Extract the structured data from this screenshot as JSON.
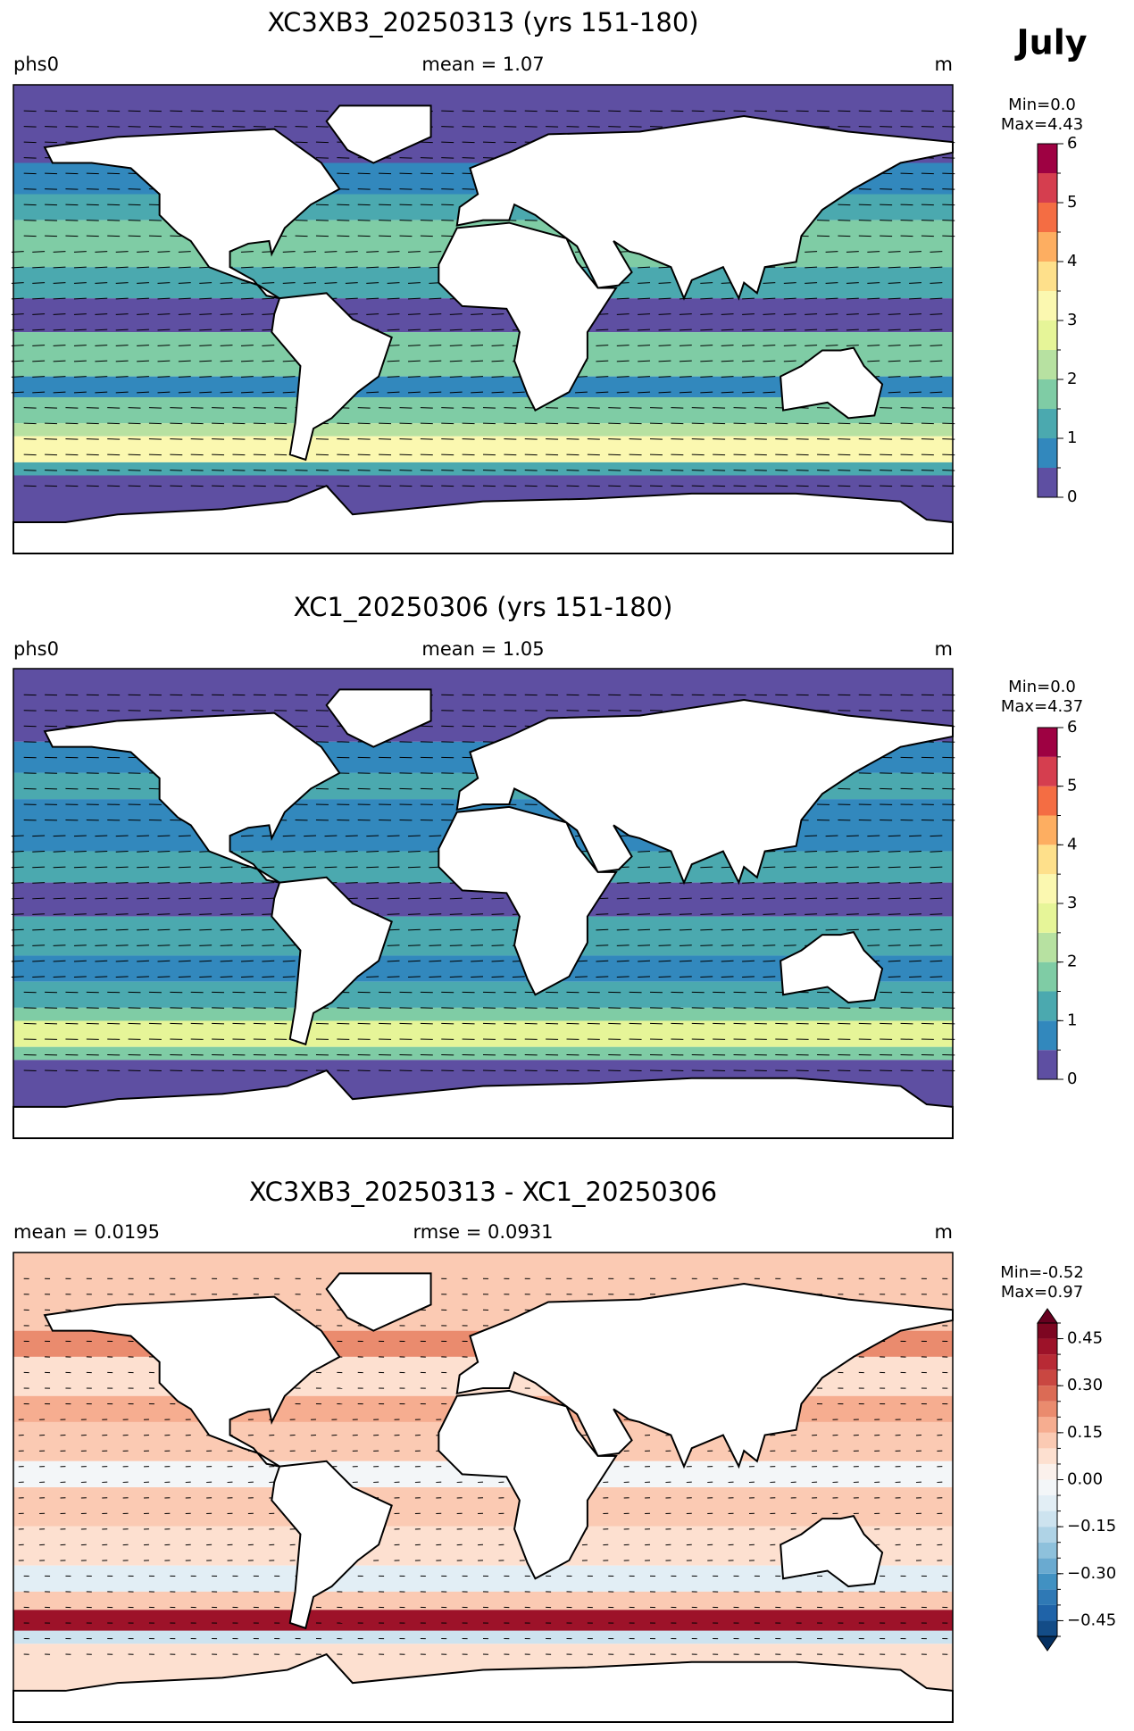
{
  "figure_title": "July",
  "chart_data": [
    {
      "type": "map",
      "title": "XC3XB3_20250313 (yrs 151-180)",
      "left_label": "phs0",
      "center_label": "mean = 1.07",
      "right_label": "m",
      "colorbar": {
        "stats": [
          "Min=0.0",
          "Max=4.43"
        ],
        "lim": [
          0,
          6
        ],
        "ticks": [
          0,
          1,
          2,
          3,
          4,
          5,
          6
        ],
        "levels": [
          0,
          0.5,
          1,
          1.5,
          2,
          2.5,
          3,
          3.5,
          4,
          4.5,
          5,
          5.5,
          6
        ],
        "colors": [
          "#5e4fa2",
          "#3288bd",
          "#4ba9af",
          "#7fcca5",
          "#b7e1a1",
          "#e6f598",
          "#fbf8b0",
          "#fee08b",
          "#fdae61",
          "#f46d43",
          "#d53e4f",
          "#9e0142"
        ]
      }
    },
    {
      "type": "map",
      "title": "XC1_20250306 (yrs 151-180)",
      "left_label": "phs0",
      "center_label": "mean = 1.05",
      "right_label": "m",
      "colorbar": {
        "stats": [
          "Min=0.0",
          "Max=4.37"
        ],
        "lim": [
          0,
          6
        ],
        "ticks": [
          0,
          1,
          2,
          3,
          4,
          5,
          6
        ],
        "levels": [
          0,
          0.5,
          1,
          1.5,
          2,
          2.5,
          3,
          3.5,
          4,
          4.5,
          5,
          5.5,
          6
        ],
        "colors": [
          "#5e4fa2",
          "#3288bd",
          "#4ba9af",
          "#7fcca5",
          "#b7e1a1",
          "#e6f598",
          "#fbf8b0",
          "#fee08b",
          "#fdae61",
          "#f46d43",
          "#d53e4f",
          "#9e0142"
        ]
      }
    },
    {
      "type": "map",
      "title": "XC3XB3_20250313 - XC1_20250306",
      "left_label": "mean = 0.0195",
      "center_label": "rmse = 0.0931",
      "right_label": "m",
      "colorbar": {
        "stats": [
          "Min=-0.52",
          "Max=0.97"
        ],
        "lim": [
          -0.5,
          0.5
        ],
        "extend": "both",
        "ticks": [
          {
            "value": -0.45,
            "label": "−0.45"
          },
          {
            "value": -0.3,
            "label": "−0.30"
          },
          {
            "value": -0.15,
            "label": "−0.15"
          },
          {
            "value": 0,
            "label": "0.00"
          },
          0.15,
          {
            "value": 0.3,
            "label": "0.30"
          },
          0.45
        ],
        "levels": [
          -0.5,
          -0.45,
          -0.4,
          -0.35,
          -0.3,
          -0.25,
          -0.2,
          -0.15,
          -0.1,
          -0.05,
          0,
          0.05,
          0.1,
          0.15,
          0.2,
          0.25,
          0.3,
          0.35,
          0.4,
          0.45,
          0.5
        ],
        "colors": [
          "#134c87",
          "#1f63a8",
          "#2f79b5",
          "#4191c2",
          "#6aaad0",
          "#8ec1dc",
          "#afd3e6",
          "#cde3ef",
          "#e2eef5",
          "#f3f6f8",
          "#fbf1ec",
          "#fde0d0",
          "#fbcab3",
          "#f6ad90",
          "#ea8b6e",
          "#db6b55",
          "#c94741",
          "#b82a35",
          "#9d1229",
          "#7d0621"
        ],
        "under_color": "#053061",
        "over_color": "#67001f"
      }
    }
  ]
}
